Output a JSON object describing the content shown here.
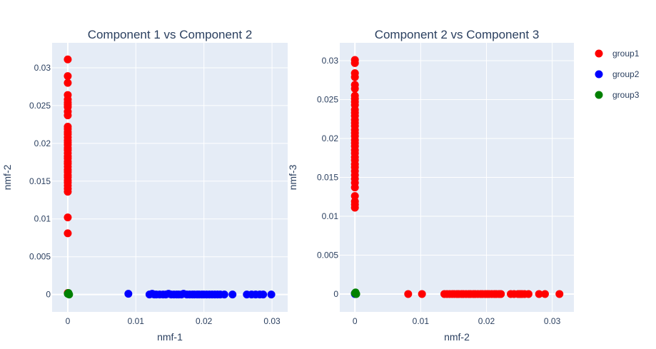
{
  "chart_data": [
    {
      "type": "scatter",
      "title": "Component 1 vs Component 2",
      "xlabel": "nmf-1",
      "ylabel": "nmf-2",
      "xlim": [
        -0.0023,
        0.0323
      ],
      "ylim": [
        -0.0023,
        0.0333
      ],
      "xticks": [
        0,
        0.01,
        0.02,
        0.03
      ],
      "xtick_labels": [
        "0",
        "0.01",
        "0.02",
        "0.03"
      ],
      "yticks": [
        0,
        0.005,
        0.01,
        0.015,
        0.02,
        0.025,
        0.03
      ],
      "ytick_labels": [
        "0",
        "0.005",
        "0.01",
        "0.015",
        "0.02",
        "0.025",
        "0.03"
      ],
      "grid": true,
      "series": [
        {
          "name": "group1",
          "color": "#ff0000",
          "points": [
            [
              0,
              0.0311
            ],
            [
              0,
              0.0289
            ],
            [
              0,
              0.028
            ],
            [
              0,
              0.0264
            ],
            [
              0,
              0.0258
            ],
            [
              0,
              0.0254
            ],
            [
              0,
              0.0251
            ],
            [
              0,
              0.0248
            ],
            [
              0,
              0.0242
            ],
            [
              0,
              0.0237
            ],
            [
              0,
              0.0222
            ],
            [
              0,
              0.0219
            ],
            [
              0,
              0.0215
            ],
            [
              0,
              0.0212
            ],
            [
              0,
              0.0208
            ],
            [
              0,
              0.0204
            ],
            [
              0,
              0.0201
            ],
            [
              0,
              0.0198
            ],
            [
              0,
              0.0194
            ],
            [
              0,
              0.0191
            ],
            [
              0,
              0.0187
            ],
            [
              0,
              0.0183
            ],
            [
              0,
              0.018
            ],
            [
              0,
              0.0176
            ],
            [
              0,
              0.0173
            ],
            [
              0,
              0.0169
            ],
            [
              0,
              0.0165
            ],
            [
              0,
              0.0162
            ],
            [
              0,
              0.0158
            ],
            [
              0,
              0.0155
            ],
            [
              0,
              0.0151
            ],
            [
              0,
              0.0148
            ],
            [
              0,
              0.0144
            ],
            [
              0,
              0.014
            ],
            [
              0,
              0.0136
            ],
            [
              0,
              0.0102
            ],
            [
              0,
              0.0081
            ],
            [
              0,
              0.0002
            ]
          ]
        },
        {
          "name": "group2",
          "color": "#0000ff",
          "points": [
            [
              0.0089,
              0.0001
            ],
            [
              0.012,
              0
            ],
            [
              0.0124,
              0.0001
            ],
            [
              0.0127,
              0
            ],
            [
              0.013,
              0
            ],
            [
              0.0135,
              0
            ],
            [
              0.014,
              0
            ],
            [
              0.0144,
              0
            ],
            [
              0.0148,
              0.0001
            ],
            [
              0.0152,
              0
            ],
            [
              0.0156,
              0
            ],
            [
              0.016,
              0
            ],
            [
              0.0163,
              0
            ],
            [
              0.0167,
              0
            ],
            [
              0.017,
              0.0001
            ],
            [
              0.0175,
              0
            ],
            [
              0.0179,
              0
            ],
            [
              0.0183,
              0
            ],
            [
              0.0186,
              0
            ],
            [
              0.019,
              0
            ],
            [
              0.0193,
              0
            ],
            [
              0.0197,
              0
            ],
            [
              0.02,
              0
            ],
            [
              0.0204,
              0
            ],
            [
              0.0208,
              0
            ],
            [
              0.0212,
              0
            ],
            [
              0.0216,
              0
            ],
            [
              0.022,
              0
            ],
            [
              0.0224,
              0
            ],
            [
              0.023,
              0
            ],
            [
              0.0242,
              0
            ],
            [
              0.0263,
              0
            ],
            [
              0.027,
              0
            ],
            [
              0.0276,
              0
            ],
            [
              0.0282,
              0
            ],
            [
              0.0287,
              0
            ],
            [
              0.0299,
              0
            ]
          ]
        },
        {
          "name": "group3",
          "color": "#008000",
          "points": [
            [
              0,
              0.0001
            ],
            [
              0.0001,
              0.0002
            ],
            [
              0.0002,
              0
            ],
            [
              0.0001,
              0.0001
            ]
          ]
        }
      ]
    },
    {
      "type": "scatter",
      "title": "Component 2 vs Component 3",
      "xlabel": "nmf-2",
      "ylabel": "nmf-3",
      "xlim": [
        -0.0023,
        0.0333
      ],
      "ylim": [
        -0.0023,
        0.0323
      ],
      "xticks": [
        0,
        0.01,
        0.02,
        0.03
      ],
      "xtick_labels": [
        "0",
        "0.01",
        "0.02",
        "0.03"
      ],
      "yticks": [
        0,
        0.005,
        0.01,
        0.015,
        0.02,
        0.025,
        0.03
      ],
      "ytick_labels": [
        "0",
        "0.005",
        "0.01",
        "0.015",
        "0.02",
        "0.025",
        "0.03"
      ],
      "grid": true,
      "series": [
        {
          "name": "group1",
          "color": "#ff0000",
          "points": [
            [
              0,
              0.0301
            ],
            [
              0,
              0.0297
            ],
            [
              0,
              0.0284
            ],
            [
              0,
              0.0279
            ],
            [
              0,
              0.0269
            ],
            [
              0,
              0.0264
            ],
            [
              0,
              0.0255
            ],
            [
              0,
              0.0251
            ],
            [
              0,
              0.0247
            ],
            [
              0,
              0.0243
            ],
            [
              0,
              0.0237
            ],
            [
              0,
              0.0233
            ],
            [
              0,
              0.0229
            ],
            [
              0,
              0.0224
            ],
            [
              0,
              0.022
            ],
            [
              0,
              0.0216
            ],
            [
              0,
              0.0211
            ],
            [
              0,
              0.0207
            ],
            [
              0,
              0.0203
            ],
            [
              0,
              0.0198
            ],
            [
              0,
              0.0194
            ],
            [
              0,
              0.019
            ],
            [
              0,
              0.0185
            ],
            [
              0,
              0.0181
            ],
            [
              0,
              0.0176
            ],
            [
              0,
              0.0172
            ],
            [
              0,
              0.0167
            ],
            [
              0,
              0.0163
            ],
            [
              0,
              0.0158
            ],
            [
              0,
              0.0153
            ],
            [
              0,
              0.0148
            ],
            [
              0,
              0.0143
            ],
            [
              0,
              0.0137
            ],
            [
              0,
              0.0126
            ],
            [
              0,
              0.0119
            ],
            [
              0,
              0.0115
            ],
            [
              0,
              0.0111
            ],
            [
              0.0081,
              0
            ],
            [
              0.0102,
              0
            ],
            [
              0.0136,
              0
            ],
            [
              0.014,
              0
            ],
            [
              0.0144,
              0
            ],
            [
              0.0148,
              0
            ],
            [
              0.0151,
              0
            ],
            [
              0.0155,
              0
            ],
            [
              0.0158,
              0
            ],
            [
              0.0162,
              0
            ],
            [
              0.0165,
              0
            ],
            [
              0.0169,
              0
            ],
            [
              0.0173,
              0
            ],
            [
              0.0176,
              0
            ],
            [
              0.018,
              0
            ],
            [
              0.0183,
              0
            ],
            [
              0.0187,
              0
            ],
            [
              0.0191,
              0
            ],
            [
              0.0194,
              0
            ],
            [
              0.0198,
              0
            ],
            [
              0.0201,
              0
            ],
            [
              0.0204,
              0
            ],
            [
              0.0208,
              0
            ],
            [
              0.0212,
              0
            ],
            [
              0.0215,
              0
            ],
            [
              0.0219,
              0
            ],
            [
              0.0222,
              0
            ],
            [
              0.0237,
              0
            ],
            [
              0.0242,
              0
            ],
            [
              0.0248,
              0
            ],
            [
              0.0251,
              0
            ],
            [
              0.0254,
              0
            ],
            [
              0.0258,
              0
            ],
            [
              0.0264,
              0
            ],
            [
              0.028,
              0
            ],
            [
              0.0289,
              0
            ],
            [
              0.0311,
              0
            ]
          ]
        },
        {
          "name": "group2",
          "color": "#0000ff",
          "points": [
            [
              0,
              0
            ],
            [
              0.0001,
              0
            ],
            [
              0,
              0.0001
            ]
          ]
        },
        {
          "name": "group3",
          "color": "#008000",
          "points": [
            [
              0,
              0.0001
            ],
            [
              0.0001,
              0.0001
            ],
            [
              0.0002,
              0
            ],
            [
              0.0001,
              0.0002
            ]
          ]
        }
      ]
    }
  ],
  "legend": {
    "placement": "top-right",
    "items": [
      {
        "name": "group1",
        "color": "#ff0000"
      },
      {
        "name": "group2",
        "color": "#0000ff"
      },
      {
        "name": "group3",
        "color": "#008000"
      }
    ]
  }
}
